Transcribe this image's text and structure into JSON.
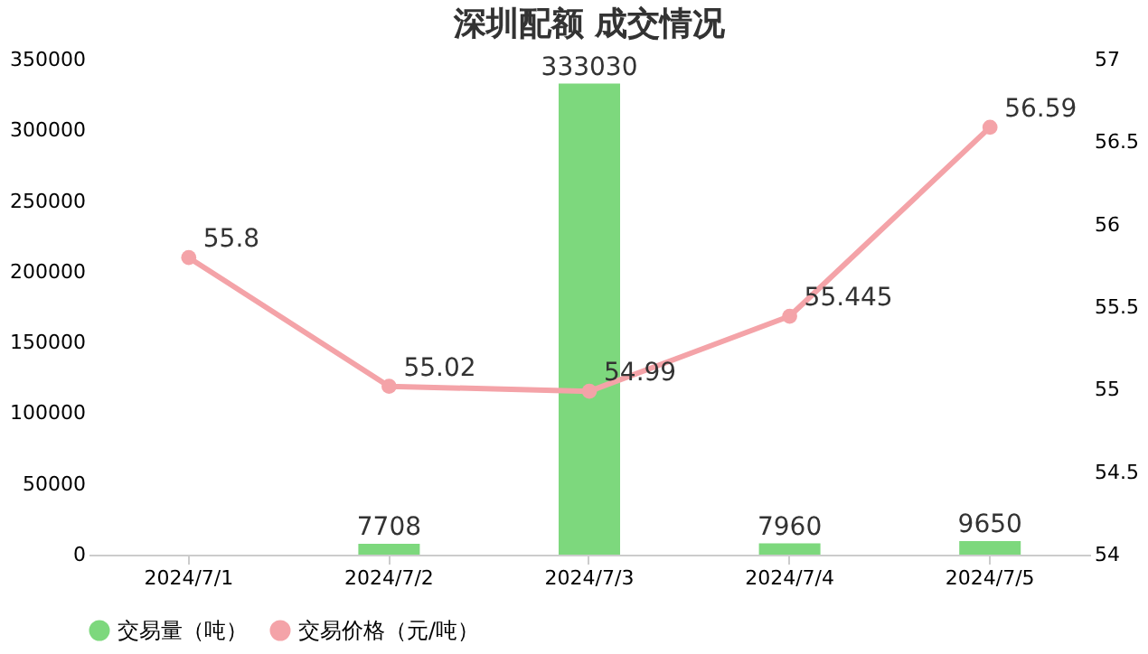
{
  "chart_data": {
    "type": "bar",
    "title": "深圳配额 成交情况",
    "categories": [
      "2024/7/1",
      "2024/7/2",
      "2024/7/3",
      "2024/7/4",
      "2024/7/5"
    ],
    "series": [
      {
        "name": "交易量（吨）",
        "color": "#7dd87d",
        "values": [
          null,
          7708,
          333030,
          7960,
          9650
        ]
      },
      {
        "name": "交易价格（元/吨）",
        "type": "line",
        "axis": "y2",
        "color": "#f4a3a8",
        "values": [
          55.8,
          55.02,
          54.99,
          55.445,
          56.59
        ]
      }
    ],
    "ylim": [
      0,
      350000
    ],
    "yticks": [
      0,
      50000,
      100000,
      150000,
      200000,
      250000,
      300000,
      350000
    ],
    "y2lim": [
      54,
      57
    ],
    "y2ticks": [
      54,
      54.5,
      55,
      55.5,
      56,
      56.5,
      57
    ],
    "data_labels": true,
    "legend": "bottom",
    "grid": false,
    "marker": "circle"
  }
}
